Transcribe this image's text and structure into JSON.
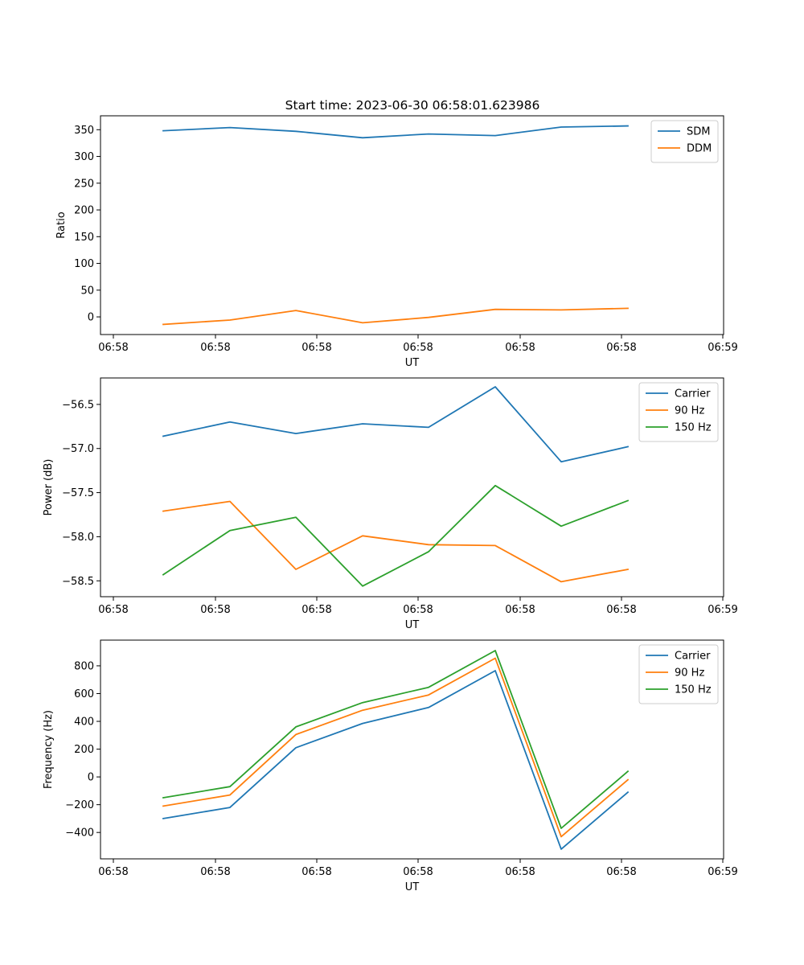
{
  "figure_title": "Start time: 2023-06-30 06:58:01.623986",
  "chart_data": [
    {
      "type": "line",
      "title": "Start time: 2023-06-30 06:58:01.623986",
      "xlabel": "UT",
      "ylabel": "Ratio",
      "x_ticks": [
        "06:58",
        "06:58",
        "06:58",
        "06:58",
        "06:58",
        "06:58",
        "06:59"
      ],
      "y_ticks": [
        0,
        50,
        100,
        150,
        200,
        250,
        300,
        350
      ],
      "ylim": [
        -33,
        376
      ],
      "legend_position": "top-right",
      "series": [
        {
          "name": "SDM",
          "color": "#1f77b4",
          "values": [
            348,
            354,
            347,
            335,
            342,
            339,
            355,
            357
          ]
        },
        {
          "name": "DDM",
          "color": "#ff7f0e",
          "values": [
            -14,
            -6,
            12,
            -11,
            -1,
            14,
            13,
            16
          ]
        }
      ]
    },
    {
      "type": "line",
      "xlabel": "UT",
      "ylabel": "Power (dB)",
      "x_ticks": [
        "06:58",
        "06:58",
        "06:58",
        "06:58",
        "06:58",
        "06:58",
        "06:59"
      ],
      "y_ticks": [
        -56.5,
        -57.0,
        -57.5,
        -58.0,
        -58.5
      ],
      "ylim": [
        -58.68,
        -56.2
      ],
      "legend_position": "top-right",
      "series": [
        {
          "name": "Carrier",
          "color": "#1f77b4",
          "values": [
            -56.86,
            -56.7,
            -56.83,
            -56.72,
            -56.76,
            -56.3,
            -57.15,
            -56.98
          ]
        },
        {
          "name": "90 Hz",
          "color": "#ff7f0e",
          "values": [
            -57.71,
            -57.6,
            -58.37,
            -57.99,
            -58.09,
            -58.1,
            -58.51,
            -58.37
          ]
        },
        {
          "name": "150 Hz",
          "color": "#2ca02c",
          "values": [
            -58.43,
            -57.93,
            -57.78,
            -58.56,
            -58.17,
            -57.42,
            -57.88,
            -57.59
          ]
        }
      ]
    },
    {
      "type": "line",
      "xlabel": "UT",
      "ylabel": "Frequency (Hz)",
      "x_ticks": [
        "06:58",
        "06:58",
        "06:58",
        "06:58",
        "06:58",
        "06:58",
        "06:59"
      ],
      "y_ticks": [
        -400,
        -200,
        0,
        200,
        400,
        600,
        800
      ],
      "ylim": [
        -590,
        985
      ],
      "legend_position": "top-right",
      "series": [
        {
          "name": "Carrier",
          "color": "#1f77b4",
          "values": [
            -300,
            -220,
            210,
            385,
            500,
            765,
            -520,
            -110
          ]
        },
        {
          "name": "90 Hz",
          "color": "#ff7f0e",
          "values": [
            -210,
            -130,
            305,
            480,
            590,
            855,
            -430,
            -20
          ]
        },
        {
          "name": "150 Hz",
          "color": "#2ca02c",
          "values": [
            -150,
            -70,
            360,
            535,
            645,
            910,
            -370,
            40
          ]
        }
      ]
    }
  ]
}
